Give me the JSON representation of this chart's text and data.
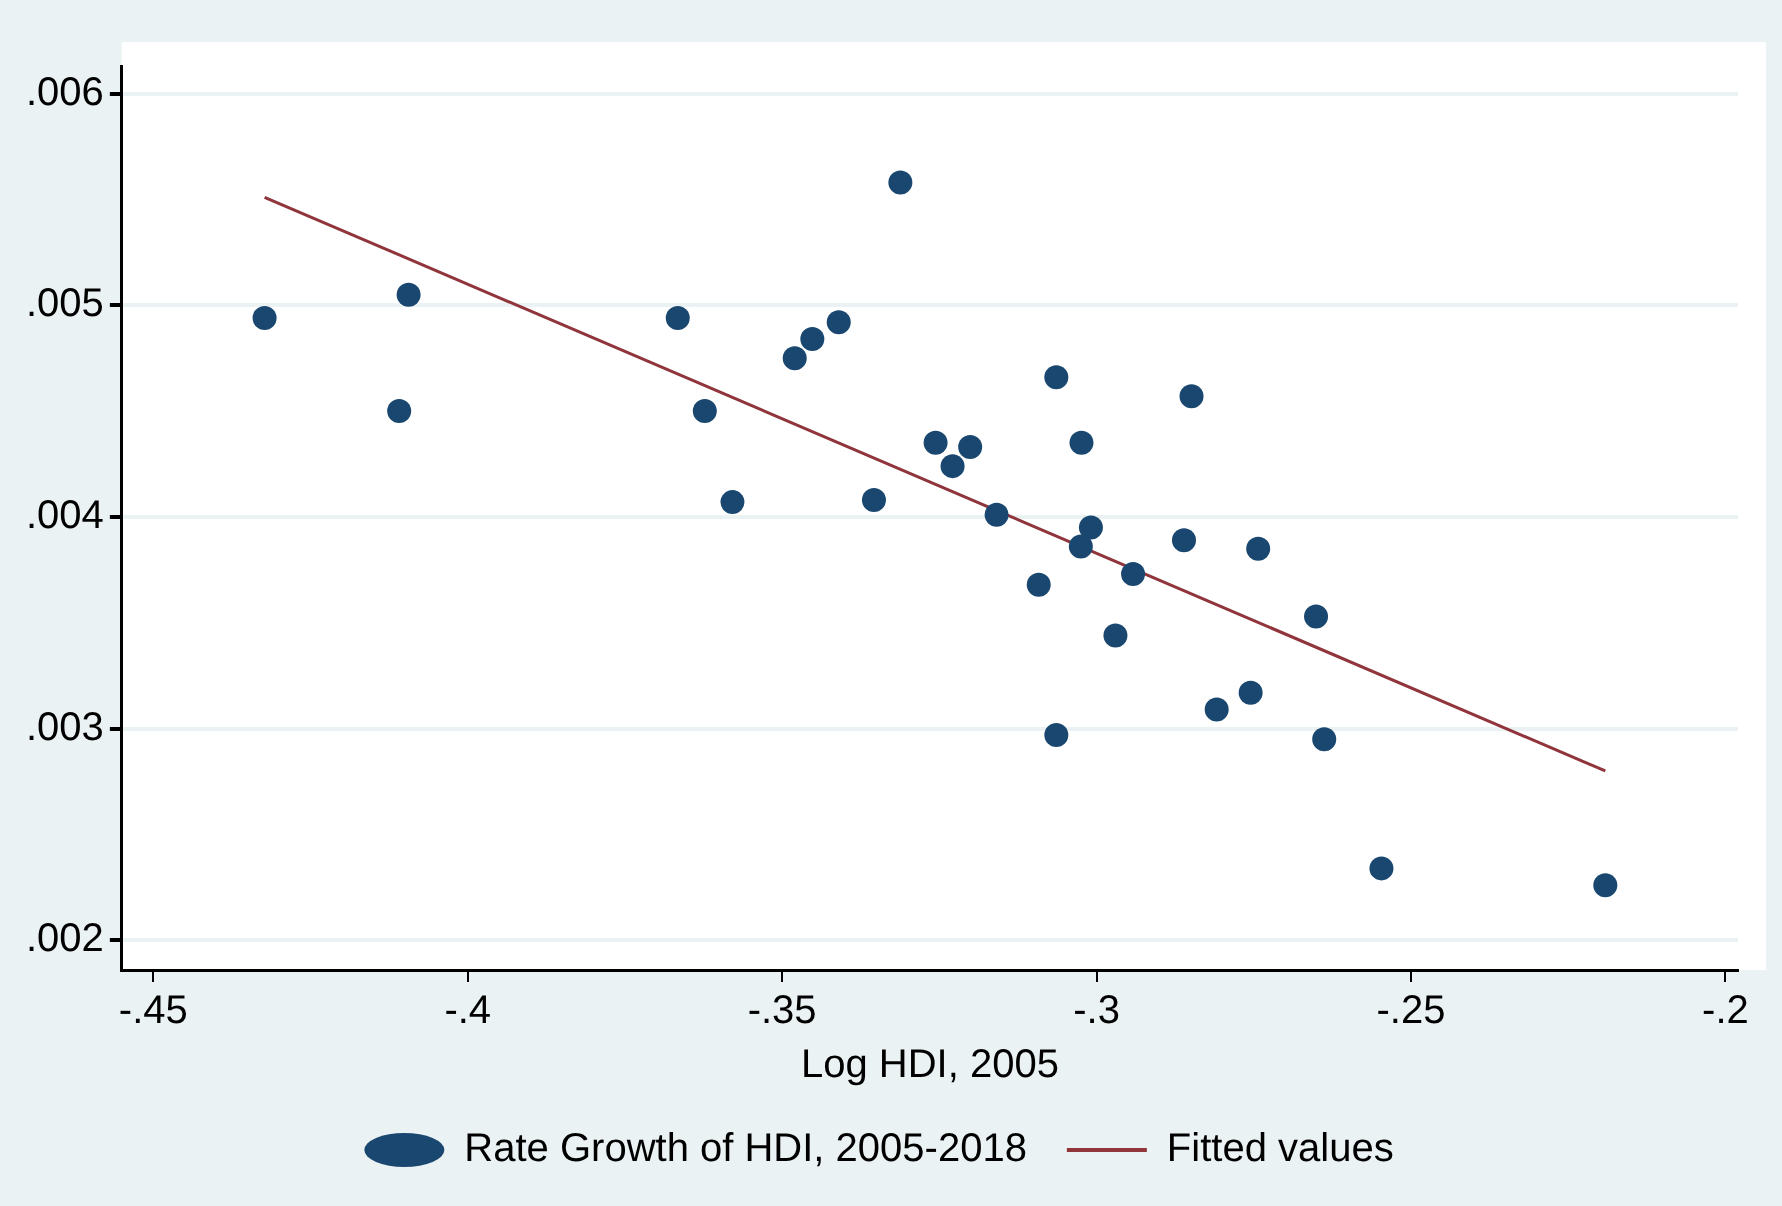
{
  "chart_data": {
    "type": "scatter",
    "xlabel": "Log HDI, 2005",
    "xlim": [
      -0.455,
      -0.198
    ],
    "ylim": [
      0.00186,
      0.00613
    ],
    "xticks": [
      {
        "value": -0.45,
        "label": "-.45"
      },
      {
        "value": -0.4,
        "label": "-.4"
      },
      {
        "value": -0.35,
        "label": "-.35"
      },
      {
        "value": -0.3,
        "label": "-.3"
      },
      {
        "value": -0.25,
        "label": "-.25"
      },
      {
        "value": -0.2,
        "label": "-.2"
      }
    ],
    "yticks": [
      {
        "value": 0.002,
        "label": ".002"
      },
      {
        "value": 0.003,
        "label": ".003"
      },
      {
        "value": 0.004,
        "label": ".004"
      },
      {
        "value": 0.005,
        "label": ".005"
      },
      {
        "value": 0.006,
        "label": ".006"
      }
    ],
    "grid": "y",
    "legend": "bottom",
    "marker": "circle",
    "series": [
      {
        "name": "Rate Growth of HDI, 2005-2018",
        "color": "#1a476f",
        "type": "scatter",
        "x": [
          -0.4323,
          -0.4094,
          -0.4109,
          -0.3666,
          -0.3623,
          -0.3579,
          -0.348,
          -0.3452,
          -0.341,
          -0.3354,
          -0.3312,
          -0.3256,
          -0.3229,
          -0.3201,
          -0.3159,
          -0.3092,
          -0.3064,
          -0.3064,
          -0.3024,
          -0.3009,
          -0.3025,
          -0.297,
          -0.2942,
          -0.2861,
          -0.2849,
          -0.2809,
          -0.2755,
          -0.2743,
          -0.2651,
          -0.2638,
          -0.2547,
          -0.2191
        ],
        "values": [
          0.00494,
          0.00505,
          0.0045,
          0.00494,
          0.0045,
          0.00407,
          0.00475,
          0.00484,
          0.00492,
          0.00408,
          0.00558,
          0.00435,
          0.00424,
          0.00433,
          0.00401,
          0.00368,
          0.00466,
          0.00297,
          0.00435,
          0.00395,
          0.00386,
          0.00344,
          0.00373,
          0.00389,
          0.00457,
          0.00309,
          0.00317,
          0.00385,
          0.00353,
          0.00295,
          0.00234,
          0.00226
        ]
      },
      {
        "name": "Fitted values",
        "color": "#90353b",
        "type": "line",
        "marker": "none",
        "x": [
          -0.4323,
          -0.2191
        ],
        "values": [
          0.00551,
          0.0028
        ]
      }
    ]
  }
}
